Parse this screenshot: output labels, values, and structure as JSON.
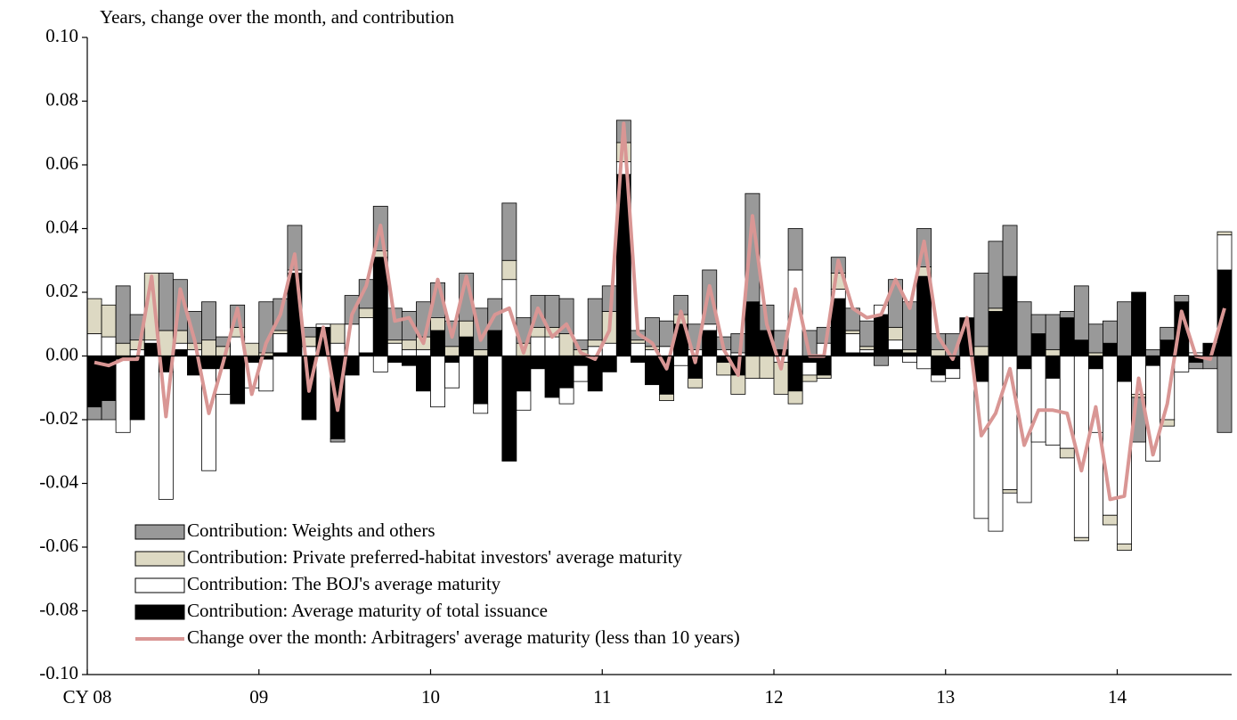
{
  "chart_data": {
    "type": "bar",
    "stacked": true,
    "title": "Years, change over the month, and contribution",
    "categories": [
      "CY 08",
      null,
      null,
      null,
      null,
      null,
      null,
      null,
      null,
      null,
      null,
      null,
      "09",
      null,
      null,
      null,
      null,
      null,
      null,
      null,
      null,
      null,
      null,
      null,
      "10",
      null,
      null,
      null,
      null,
      null,
      null,
      null,
      null,
      null,
      null,
      null,
      "11",
      null,
      null,
      null,
      null,
      null,
      null,
      null,
      null,
      null,
      null,
      null,
      "12",
      null,
      null,
      null,
      null,
      null,
      null,
      null,
      null,
      null,
      null,
      null,
      "13",
      null,
      null,
      null,
      null,
      null,
      null,
      null,
      null,
      null,
      null,
      null,
      "14",
      null,
      null,
      null,
      null,
      null,
      null,
      null
    ],
    "ylim": [
      -0.1,
      0.1
    ],
    "yticks": [
      {
        "value": -0.1,
        "label": "-0.10"
      },
      {
        "value": -0.08,
        "label": "-0.08"
      },
      {
        "value": -0.06,
        "label": "-0.06"
      },
      {
        "value": -0.04,
        "label": "-0.04"
      },
      {
        "value": -0.02,
        "label": "-0.02"
      },
      {
        "value": 0,
        "label": "0.00"
      },
      {
        "value": 0.02,
        "label": "0.02"
      },
      {
        "value": 0.04,
        "label": "0.04"
      },
      {
        "value": 0.06,
        "label": "0.06"
      },
      {
        "value": 0.08,
        "label": "0.08"
      },
      {
        "value": 0.1,
        "label": "0.10"
      }
    ],
    "legend": "lower-left",
    "series": [
      {
        "name": "Contribution: Weights and others",
        "color": "#999999",
        "values": [
          -0.004,
          -0.006,
          0.018,
          0.008,
          0,
          0.018,
          0.016,
          0.01,
          0.012,
          0.003,
          0.007,
          0,
          0.016,
          0.01,
          0.014,
          0.003,
          0,
          -0.001,
          0.009,
          0.009,
          0.014,
          0.01,
          0.009,
          0.011,
          0.011,
          0.008,
          0.015,
          0.013,
          0.01,
          0.018,
          0.008,
          0.01,
          0.01,
          0.011,
          0.003,
          0.013,
          0.008,
          0.007,
          0.003,
          0.009,
          0.008,
          0.006,
          0.008,
          0.017,
          0.004,
          0.006,
          0.034,
          0.008,
          0.006,
          0.013,
          0.008,
          0.005,
          0.005,
          0.007,
          0.008,
          -0.003,
          0.015,
          0.015,
          0.012,
          0.005,
          0.007,
          0,
          0.023,
          0.021,
          0.016,
          0.017,
          0.006,
          0.011,
          0.002,
          0.017,
          0.009,
          0.007,
          0.017,
          -0.014,
          0.002,
          0.004,
          0.002,
          -0.002,
          -0.004,
          -0.024
        ]
      },
      {
        "name": "Contribution: Private preferred-habitat investors' average maturity",
        "color": "#ddd9c3",
        "values": [
          0.011,
          0.01,
          0.004,
          0.003,
          0.021,
          0.008,
          0.004,
          0.002,
          0.005,
          0.003,
          0.003,
          0.004,
          0.001,
          0.001,
          0,
          0.003,
          0,
          0.006,
          0,
          0.003,
          0.002,
          0.001,
          0.003,
          0.004,
          0.004,
          0.003,
          0.005,
          0.002,
          0,
          0.006,
          0.004,
          0.003,
          0.003,
          0.007,
          0.002,
          0.002,
          0.01,
          0.006,
          0.001,
          0.001,
          -0.002,
          0.003,
          -0.003,
          0,
          -0.004,
          -0.006,
          -0.007,
          -0.007,
          -0.01,
          -0.004,
          -0.002,
          -0.001,
          0.005,
          0.001,
          0.001,
          0,
          0.004,
          0.001,
          0.003,
          0.002,
          0,
          0,
          0.003,
          0.001,
          -0.001,
          0,
          0,
          0.002,
          -0.003,
          -0.001,
          0.001,
          -0.003,
          -0.002,
          -0.001,
          0,
          -0.002,
          0,
          0,
          0,
          0.001
        ]
      },
      {
        "name": "Contribution: The BOJ's average maturity",
        "color": "#ffffff",
        "values": [
          0.007,
          0.006,
          -0.023,
          0.002,
          0.001,
          -0.04,
          0.002,
          0.002,
          -0.032,
          -0.008,
          0.006,
          -0.008,
          -0.01,
          0.006,
          0.001,
          0.003,
          0.001,
          0.004,
          0.01,
          0.011,
          -0.005,
          0.004,
          0.002,
          0.002,
          -0.016,
          -0.008,
          0,
          -0.003,
          0,
          0.024,
          -0.006,
          0.006,
          0.006,
          -0.005,
          -0.005,
          0.003,
          0.004,
          0.004,
          0.004,
          0.002,
          0.003,
          -0.003,
          0.002,
          0.002,
          0.002,
          0.001,
          0,
          0,
          -0.002,
          0.027,
          -0.004,
          0.004,
          0.003,
          0.006,
          0.001,
          0.003,
          0.003,
          -0.002,
          -0.004,
          -0.002,
          -0.003,
          0,
          -0.043,
          -0.055,
          -0.042,
          -0.042,
          -0.027,
          -0.021,
          -0.029,
          -0.057,
          -0.02,
          -0.05,
          -0.051,
          -0.012,
          -0.03,
          -0.02,
          -0.005,
          0.001,
          0,
          0.011
        ]
      },
      {
        "name": "Contribution: Average maturity of total issuance",
        "color": "#000000",
        "values": [
          -0.016,
          -0.014,
          -0.001,
          -0.02,
          0.004,
          -0.005,
          0.002,
          -0.006,
          -0.004,
          -0.004,
          -0.015,
          -0.002,
          -0.001,
          0.001,
          0.026,
          -0.02,
          0.009,
          -0.026,
          -0.006,
          0.001,
          0.031,
          -0.002,
          -0.003,
          -0.011,
          0.008,
          -0.002,
          0.006,
          -0.015,
          0.008,
          -0.033,
          -0.011,
          -0.004,
          -0.013,
          -0.01,
          -0.003,
          -0.011,
          -0.005,
          0.057,
          -0.002,
          -0.009,
          -0.012,
          0.01,
          -0.007,
          0.008,
          -0.002,
          -0.006,
          0.017,
          0.008,
          0.002,
          -0.011,
          -0.002,
          -0.006,
          0.018,
          0.001,
          0.001,
          0.013,
          0.002,
          0.001,
          0.025,
          -0.006,
          -0.004,
          0.012,
          -0.008,
          0.014,
          0.025,
          -0.004,
          0.007,
          -0.007,
          0.012,
          0.005,
          -0.004,
          0.004,
          -0.008,
          0.02,
          -0.003,
          0.005,
          0.017,
          -0.002,
          0.004,
          0.027
        ]
      },
      {
        "name": "Change over the month: Arbitragers' average maturity (less than 10 years)",
        "color": "#d99694",
        "type": "line",
        "values": [
          -0.002,
          -0.003,
          -0.001,
          -0.001,
          0.025,
          -0.019,
          0.021,
          0.005,
          -0.018,
          -0.002,
          0.015,
          -0.012,
          0.004,
          0.013,
          0.032,
          -0.011,
          0.009,
          -0.017,
          0.013,
          0.022,
          0.041,
          0.011,
          0.012,
          0.004,
          0.024,
          0.006,
          0.025,
          0.005,
          0.013,
          0.015,
          0.001,
          0.015,
          0.006,
          0.01,
          0.001,
          -0.001,
          0.008,
          0.073,
          0.007,
          0.004,
          -0.004,
          0.014,
          -0.002,
          0.022,
          0.002,
          -0.006,
          0.044,
          0.01,
          -0.004,
          0.021,
          0,
          0,
          0.03,
          0.015,
          0.012,
          0.013,
          0.024,
          0.015,
          0.036,
          0.006,
          -0.001,
          0.012,
          -0.025,
          -0.018,
          -0.004,
          -0.028,
          -0.017,
          -0.017,
          -0.018,
          -0.036,
          -0.016,
          -0.045,
          -0.044,
          -0.007,
          -0.031,
          -0.015,
          0.014,
          0,
          -0.001,
          0.015
        ]
      }
    ]
  }
}
